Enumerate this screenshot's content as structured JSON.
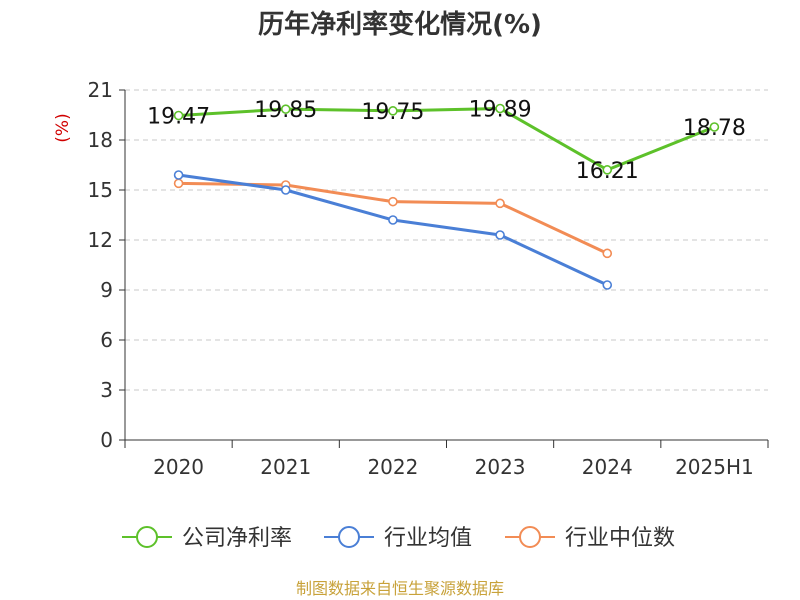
{
  "chart_data": {
    "type": "line",
    "title": "历年净利率变化情况(%)",
    "ylabel": "(%)",
    "xlabel": "",
    "categories": [
      "2020",
      "2021",
      "2022",
      "2023",
      "2024",
      "2025H1"
    ],
    "ylim": [
      0,
      21
    ],
    "yticks": [
      0,
      3,
      6,
      9,
      12,
      15,
      18,
      21
    ],
    "grid": true,
    "legend_position": "bottom",
    "series": [
      {
        "name": "公司净利率",
        "color": "#5dc12a",
        "values": [
          19.47,
          19.85,
          19.75,
          19.89,
          16.21,
          18.78
        ],
        "labels": [
          "19.47",
          "19.85",
          "19.75",
          "19.89",
          "16.21",
          "18.78"
        ]
      },
      {
        "name": "行业均值",
        "color": "#4a7fd6",
        "values": [
          15.9,
          15.0,
          13.2,
          12.3,
          9.3,
          null
        ]
      },
      {
        "name": "行业中位数",
        "color": "#f28c55",
        "values": [
          15.4,
          15.3,
          14.3,
          14.2,
          11.2,
          null
        ]
      }
    ]
  },
  "footer": {
    "source": "制图数据来自恒生聚源数据库"
  }
}
